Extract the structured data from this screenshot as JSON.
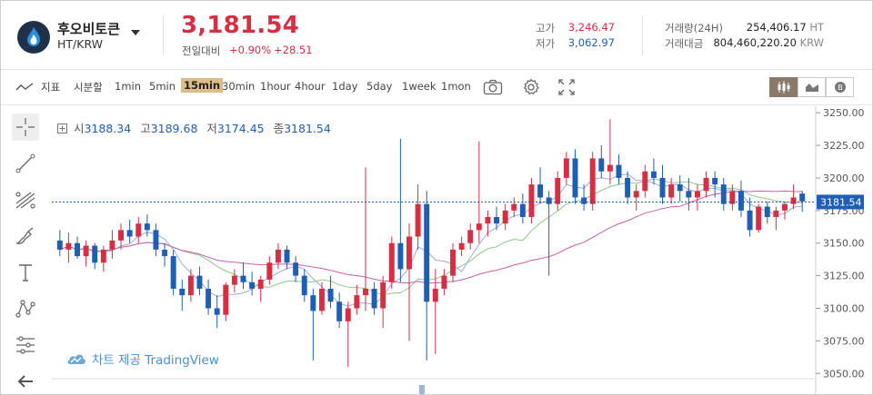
{
  "header": {
    "coin_name": "후오비토큰",
    "pair": "HT/KRW",
    "price": "3,181.54",
    "change_label": "전일대비",
    "change_rate": "+0.90%",
    "change_amount": "+28.51",
    "high_label": "고가",
    "high_value": "3,246.47",
    "low_label": "저가",
    "low_value": "3,062.97",
    "volume_label": "거래량(24H)",
    "volume_value": "254,406.17",
    "volume_unit": "HT",
    "amount_label": "거래대금",
    "amount_value": "804,460,220.20",
    "amount_unit": "KRW",
    "colors": {
      "up": "#d62f43",
      "down": "#1e5fb3"
    }
  },
  "toolbar": {
    "indicator_label": "지표",
    "timeframe_label": "시분할",
    "intervals": [
      "1min",
      "5min",
      "15min",
      "30min",
      "1hour",
      "4hour",
      "1day",
      "5day",
      "1week",
      "1mon"
    ],
    "active_interval": "15min",
    "icons": [
      "line-chart-icon",
      "camera-icon",
      "gear-icon",
      "fullscreen-icon",
      "candle-chart-icon",
      "area-chart-icon",
      "depth-chart-icon"
    ]
  },
  "left_tools": [
    "crosshair-icon",
    "trend-line-icon",
    "fib-tool-icon",
    "brush-icon",
    "text-tool-icon",
    "pattern-tool-icon",
    "measure-tool-icon",
    "back-arrow-icon"
  ],
  "ohlc": {
    "open_label": "시",
    "open": "3188.34",
    "high_label": "고",
    "high": "3189.68",
    "low_label": "저",
    "low": "3174.45",
    "close_label": "종",
    "close": "3181.54"
  },
  "watermark": "차트 제공 TradingView",
  "chart_data": {
    "type": "candlestick",
    "yticks": [
      "3250.00",
      "3225.00",
      "3200.00",
      "3175.00",
      "3150.00",
      "3125.00",
      "3100.00",
      "3075.00",
      "3050.00"
    ],
    "ylim": [
      3046,
      3255
    ],
    "last_price": "3181.54",
    "colors": {
      "up": "#d62f43",
      "down": "#1e5fb3",
      "ma_short": "#9aa9d9",
      "ma_mid": "#8fc88a",
      "ma_long": "#c65fa9"
    },
    "candles": [
      [
        3152,
        3160,
        3140,
        3145
      ],
      [
        3145,
        3158,
        3135,
        3150
      ],
      [
        3150,
        3155,
        3138,
        3140
      ],
      [
        3140,
        3152,
        3132,
        3148
      ],
      [
        3148,
        3150,
        3130,
        3135
      ],
      [
        3135,
        3148,
        3128,
        3145
      ],
      [
        3145,
        3160,
        3138,
        3152
      ],
      [
        3152,
        3165,
        3145,
        3160
      ],
      [
        3160,
        3168,
        3150,
        3155
      ],
      [
        3155,
        3170,
        3150,
        3165
      ],
      [
        3165,
        3172,
        3155,
        3160
      ],
      [
        3160,
        3165,
        3140,
        3145
      ],
      [
        3145,
        3150,
        3132,
        3140
      ],
      [
        3140,
        3145,
        3110,
        3115
      ],
      [
        3115,
        3122,
        3098,
        3110
      ],
      [
        3110,
        3130,
        3105,
        3125
      ],
      [
        3125,
        3132,
        3110,
        3115
      ],
      [
        3115,
        3122,
        3095,
        3100
      ],
      [
        3100,
        3110,
        3085,
        3095
      ],
      [
        3095,
        3120,
        3090,
        3118
      ],
      [
        3118,
        3130,
        3112,
        3125
      ],
      [
        3125,
        3135,
        3115,
        3120
      ],
      [
        3120,
        3128,
        3110,
        3115
      ],
      [
        3115,
        3125,
        3105,
        3122
      ],
      [
        3122,
        3140,
        3118,
        3135
      ],
      [
        3135,
        3150,
        3130,
        3145
      ],
      [
        3145,
        3148,
        3130,
        3135
      ],
      [
        3135,
        3140,
        3120,
        3125
      ],
      [
        3125,
        3130,
        3105,
        3110
      ],
      [
        3110,
        3115,
        3060,
        3098
      ],
      [
        3098,
        3120,
        3095,
        3115
      ],
      [
        3115,
        3125,
        3100,
        3105
      ],
      [
        3105,
        3112,
        3085,
        3090
      ],
      [
        3090,
        3105,
        3055,
        3100
      ],
      [
        3100,
        3118,
        3095,
        3110
      ],
      [
        3110,
        3208,
        3098,
        3115
      ],
      [
        3115,
        3120,
        3095,
        3100
      ],
      [
        3100,
        3125,
        3085,
        3120
      ],
      [
        3120,
        3155,
        3115,
        3150
      ],
      [
        3150,
        3230,
        3120,
        3130
      ],
      [
        3130,
        3165,
        3075,
        3155
      ],
      [
        3155,
        3195,
        3145,
        3180
      ],
      [
        3180,
        3190,
        3060,
        3105
      ],
      [
        3105,
        3130,
        3065,
        3115
      ],
      [
        3115,
        3130,
        3110,
        3125
      ],
      [
        3125,
        3150,
        3120,
        3145
      ],
      [
        3145,
        3155,
        3140,
        3150
      ],
      [
        3150,
        3165,
        3145,
        3160
      ],
      [
        3160,
        3228,
        3150,
        3165
      ],
      [
        3165,
        3175,
        3155,
        3170
      ],
      [
        3170,
        3178,
        3160,
        3165
      ],
      [
        3165,
        3180,
        3160,
        3175
      ],
      [
        3175,
        3185,
        3170,
        3180
      ],
      [
        3180,
        3188,
        3165,
        3170
      ],
      [
        3170,
        3200,
        3165,
        3195
      ],
      [
        3195,
        3208,
        3180,
        3185
      ],
      [
        3185,
        3190,
        3125,
        3180
      ],
      [
        3180,
        3205,
        3175,
        3200
      ],
      [
        3200,
        3220,
        3195,
        3215
      ],
      [
        3215,
        3222,
        3180,
        3185
      ],
      [
        3185,
        3195,
        3175,
        3180
      ],
      [
        3180,
        3220,
        3175,
        3215
      ],
      [
        3215,
        3225,
        3200,
        3205
      ],
      [
        3205,
        3245,
        3195,
        3210
      ],
      [
        3210,
        3218,
        3195,
        3200
      ],
      [
        3200,
        3205,
        3180,
        3185
      ],
      [
        3185,
        3195,
        3175,
        3190
      ],
      [
        3190,
        3210,
        3185,
        3205
      ],
      [
        3205,
        3215,
        3195,
        3200
      ],
      [
        3200,
        3210,
        3180,
        3185
      ],
      [
        3185,
        3200,
        3180,
        3195
      ],
      [
        3195,
        3202,
        3182,
        3190
      ],
      [
        3190,
        3200,
        3175,
        3185
      ],
      [
        3185,
        3195,
        3175,
        3190
      ],
      [
        3190,
        3205,
        3185,
        3200
      ],
      [
        3200,
        3205,
        3185,
        3195
      ],
      [
        3195,
        3200,
        3175,
        3180
      ],
      [
        3180,
        3195,
        3175,
        3190
      ],
      [
        3190,
        3198,
        3170,
        3175
      ],
      [
        3175,
        3185,
        3155,
        3160
      ],
      [
        3160,
        3180,
        3158,
        3178
      ],
      [
        3178,
        3182,
        3165,
        3170
      ],
      [
        3170,
        3178,
        3160,
        3175
      ],
      [
        3175,
        3182,
        3168,
        3180
      ],
      [
        3180,
        3195,
        3176,
        3185
      ],
      [
        3188,
        3190,
        3174,
        3182
      ]
    ]
  }
}
